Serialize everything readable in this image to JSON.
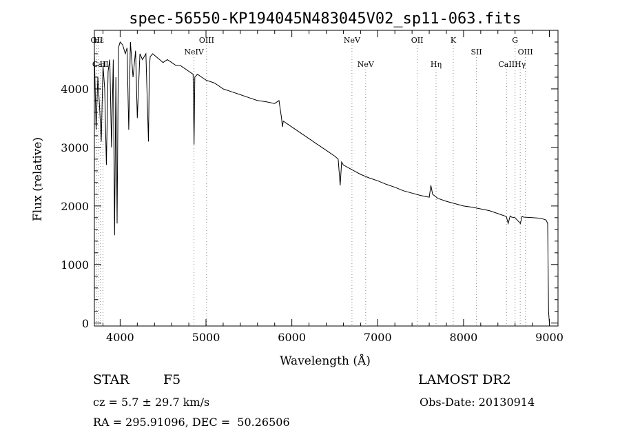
{
  "chart_data": {
    "type": "line",
    "title": "spec-56550-KP194045N483045V02_sp11-063.fits",
    "xlabel": "Wavelength (Å)",
    "ylabel": "Flux (relative)",
    "xlim": [
      3700,
      9100
    ],
    "ylim": [
      -50,
      5000
    ],
    "x_ticks": [
      4000,
      5000,
      6000,
      7000,
      8000,
      9000
    ],
    "y_ticks": [
      0,
      1000,
      2000,
      3000,
      4000
    ],
    "grid": false,
    "spectral_lines": [
      {
        "name": "OII",
        "wavelength": 3727,
        "row": "top"
      },
      {
        "name": "Hε",
        "wavelength": 3750,
        "row": "top"
      },
      {
        "name": "CaII",
        "wavelength": 3770,
        "row": "bottom"
      },
      {
        "name": "H",
        "wavelength": 3800,
        "row": "bottom"
      },
      {
        "name": "NeIV",
        "wavelength": 4860,
        "row": "mid"
      },
      {
        "name": "OIII",
        "wavelength": 5007,
        "row": "top"
      },
      {
        "name": "NeV",
        "wavelength": 6700,
        "row": "top"
      },
      {
        "name": "NeV",
        "wavelength": 6860,
        "row": "bottom"
      },
      {
        "name": "OII",
        "wavelength": 7460,
        "row": "top"
      },
      {
        "name": "Hη",
        "wavelength": 7680,
        "row": "bottom"
      },
      {
        "name": "K",
        "wavelength": 7880,
        "row": "top"
      },
      {
        "name": "SII",
        "wavelength": 8150,
        "row": "mid"
      },
      {
        "name": "CaII",
        "wavelength": 8500,
        "row": "bottom"
      },
      {
        "name": "G",
        "wavelength": 8600,
        "row": "top"
      },
      {
        "name": "Hγ",
        "wavelength": 8660,
        "row": "bottom"
      },
      {
        "name": "OIII",
        "wavelength": 8720,
        "row": "mid"
      }
    ],
    "series": [
      {
        "x": [
          3700,
          3720,
          3740,
          3760,
          3780,
          3800,
          3820,
          3840,
          3860,
          3880,
          3900,
          3920,
          3935,
          3950,
          3965,
          3980,
          4000,
          4030,
          4060,
          4080,
          4100,
          4120,
          4150,
          4180,
          4200,
          4230,
          4260,
          4300,
          4330,
          4340,
          4350,
          4380,
          4420,
          4460,
          4500,
          4550,
          4600,
          4650,
          4700,
          4750,
          4800,
          4850,
          4861,
          4870,
          4900,
          4950,
          5000,
          5100,
          5200,
          5300,
          5400,
          5500,
          5600,
          5700,
          5800,
          5850,
          5880,
          5890,
          5900,
          5950,
          6000,
          6100,
          6200,
          6300,
          6400,
          6500,
          6540,
          6563,
          6580,
          6600,
          6700,
          6800,
          6900,
          7000,
          7100,
          7200,
          7300,
          7400,
          7500,
          7600,
          7620,
          7640,
          7700,
          7800,
          7900,
          8000,
          8100,
          8200,
          8300,
          8400,
          8498,
          8520,
          8542,
          8560,
          8600,
          8662,
          8680,
          8700,
          8800,
          8900,
          8960,
          8980,
          8990,
          9000
        ],
        "y": [
          4600,
          3300,
          4200,
          3700,
          3100,
          4400,
          4000,
          2700,
          4300,
          4500,
          3000,
          4500,
          1500,
          4200,
          1700,
          4700,
          4800,
          4750,
          4600,
          4700,
          3300,
          4800,
          4200,
          4650,
          3500,
          4600,
          4500,
          4600,
          3100,
          4350,
          4550,
          4600,
          4550,
          4500,
          4450,
          4500,
          4450,
          4400,
          4400,
          4350,
          4300,
          4250,
          3050,
          4200,
          4250,
          4200,
          4150,
          4100,
          4000,
          3950,
          3900,
          3850,
          3800,
          3780,
          3750,
          3800,
          3500,
          3350,
          3450,
          3400,
          3350,
          3250,
          3150,
          3050,
          2950,
          2850,
          2800,
          2350,
          2750,
          2700,
          2620,
          2540,
          2480,
          2430,
          2370,
          2320,
          2260,
          2220,
          2180,
          2150,
          2350,
          2200,
          2130,
          2080,
          2040,
          2000,
          1980,
          1950,
          1920,
          1870,
          1820,
          1700,
          1830,
          1810,
          1800,
          1700,
          1820,
          1810,
          1800,
          1790,
          1760,
          1700,
          200,
          0
        ]
      }
    ]
  },
  "info": {
    "class": "STAR",
    "subclass": "F5",
    "cz": "cz = 5.7 ± 29.7 km/s",
    "radec": "RA = 295.91096, DEC =  50.26506",
    "survey": "LAMOST DR2",
    "obsdate": "Obs-Date: 20130914"
  }
}
